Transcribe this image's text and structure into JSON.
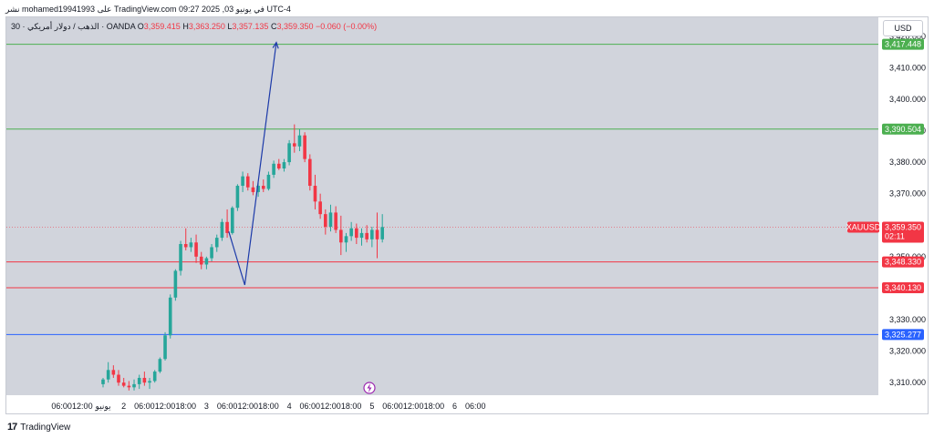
{
  "header": {
    "text": "نشر mohamed19941993 على TradingView.com في يونيو 03, 2025 09:27 UTC-4"
  },
  "legend": {
    "interval": "30",
    "symbol_name": "الذهب / دولار أمريكي",
    "broker": "OANDA",
    "o_label": "O",
    "o_value": "3,359.415",
    "h_label": "H",
    "h_value": "3,363.250",
    "l_label": "L",
    "l_value": "3,357.135",
    "c_label": "C",
    "c_value": "3,359.350",
    "change": "−0.060 (−0.00%)"
  },
  "currency_button": "USD",
  "footer": {
    "logo": "17",
    "brand": "TradingView"
  },
  "colors": {
    "up": "#26a69a",
    "down": "#f23645",
    "resistance": "#4caf50",
    "support": "#f23645",
    "blue_level": "#2962ff",
    "projection": "#1c3aa9"
  },
  "chart_data": {
    "type": "candlestick",
    "symbol": "XAUUSD",
    "ylim": [
      3306,
      3426
    ],
    "y_ticks": [
      {
        "value": 3420,
        "label": "3,420.000"
      },
      {
        "value": 3410,
        "label": "3,410.000"
      },
      {
        "value": 3400,
        "label": "3,400.000"
      },
      {
        "value": 3390,
        "label": "3,390.000"
      },
      {
        "value": 3380,
        "label": "3,380.000"
      },
      {
        "value": 3370,
        "label": "3,370.000"
      },
      {
        "value": 3350,
        "label": "3,350.000"
      },
      {
        "value": 3330,
        "label": "3,330.000"
      },
      {
        "value": 3320,
        "label": "3,320.000"
      },
      {
        "value": 3310,
        "label": "3,310.000"
      }
    ],
    "x_ticks": [
      {
        "i": -8,
        "label": "06:00"
      },
      {
        "i": -4,
        "label": "12:00"
      },
      {
        "i": 0,
        "label": "يونيو"
      },
      {
        "i": 4,
        "label": "2"
      },
      {
        "i": 8,
        "label": "06:00"
      },
      {
        "i": 12,
        "label": "12:00"
      },
      {
        "i": 16,
        "label": "18:00"
      },
      {
        "i": 20,
        "label": "3"
      },
      {
        "i": 24,
        "label": "06:00"
      },
      {
        "i": 28,
        "label": "12:00"
      },
      {
        "i": 32,
        "label": "18:00"
      },
      {
        "i": 36,
        "label": "4"
      },
      {
        "i": 40,
        "label": "06:00"
      },
      {
        "i": 44,
        "label": "12:00"
      },
      {
        "i": 48,
        "label": "18:00"
      },
      {
        "i": 52,
        "label": "5"
      },
      {
        "i": 56,
        "label": "06:00"
      },
      {
        "i": 60,
        "label": "12:00"
      },
      {
        "i": 64,
        "label": "18:00"
      },
      {
        "i": 68,
        "label": "6"
      },
      {
        "i": 72,
        "label": "06:00"
      }
    ],
    "levels": [
      {
        "name": "resistance-2",
        "value": 3417.448,
        "label": "3,417.448",
        "kind": "resistance"
      },
      {
        "name": "resistance-1",
        "value": 3390.504,
        "label": "3,390.504",
        "kind": "resistance"
      },
      {
        "name": "support-1",
        "value": 3348.33,
        "label": "3,348.330",
        "kind": "support"
      },
      {
        "name": "support-2",
        "value": 3340.13,
        "label": "3,340.130",
        "kind": "support"
      },
      {
        "name": "blue-level",
        "value": 3325.277,
        "label": "3,325.277",
        "kind": "blue_level"
      }
    ],
    "last_price": {
      "value": 3359.35,
      "label": "3,359.350",
      "countdown": "02:11"
    },
    "projection": [
      {
        "i": 24.3,
        "v": 3358
      },
      {
        "i": 27.4,
        "v": 3341
      },
      {
        "i": 33.5,
        "v": 3418
      }
    ],
    "candles": [
      [
        3309.5,
        3311.5,
        3308.5,
        3311.0
      ],
      [
        3311.0,
        3316.5,
        3310.0,
        3314.0
      ],
      [
        3314.0,
        3315.5,
        3311.5,
        3312.5
      ],
      [
        3312.5,
        3314.0,
        3309.0,
        3310.0
      ],
      [
        3310.0,
        3311.5,
        3308.5,
        3309.0
      ],
      [
        3309.0,
        3310.5,
        3307.5,
        3308.5
      ],
      [
        3308.5,
        3311.0,
        3307.5,
        3309.5
      ],
      [
        3309.5,
        3312.5,
        3308.0,
        3311.5
      ],
      [
        3311.5,
        3313.5,
        3309.0,
        3310.0
      ],
      [
        3310.0,
        3311.5,
        3308.0,
        3310.5
      ],
      [
        3310.5,
        3314.0,
        3310.0,
        3313.5
      ],
      [
        3313.5,
        3318.0,
        3313.0,
        3317.5
      ],
      [
        3317.5,
        3326.0,
        3317.0,
        3325.0
      ],
      [
        3325.0,
        3338.0,
        3324.0,
        3337.0
      ],
      [
        3337.0,
        3346.0,
        3336.0,
        3345.5
      ],
      [
        3345.5,
        3355.0,
        3344.0,
        3354.0
      ],
      [
        3354.0,
        3359.0,
        3352.0,
        3353.0
      ],
      [
        3353.0,
        3356.0,
        3351.5,
        3354.5
      ],
      [
        3354.5,
        3357.0,
        3348.0,
        3350.0
      ],
      [
        3350.0,
        3351.5,
        3346.0,
        3347.5
      ],
      [
        3347.5,
        3350.0,
        3346.0,
        3349.5
      ],
      [
        3349.5,
        3354.0,
        3348.5,
        3353.0
      ],
      [
        3353.0,
        3357.0,
        3351.5,
        3356.0
      ],
      [
        3356.0,
        3362.0,
        3355.0,
        3361.0
      ],
      [
        3361.0,
        3365.0,
        3356.0,
        3357.5
      ],
      [
        3357.5,
        3366.0,
        3357.0,
        3365.5
      ],
      [
        3365.5,
        3373.0,
        3364.5,
        3372.5
      ],
      [
        3372.5,
        3377.0,
        3370.5,
        3375.5
      ],
      [
        3375.5,
        3376.5,
        3371.0,
        3372.0
      ],
      [
        3372.0,
        3374.0,
        3369.5,
        3370.5
      ],
      [
        3370.5,
        3373.5,
        3369.0,
        3372.5
      ],
      [
        3372.5,
        3374.5,
        3370.5,
        3371.5
      ],
      [
        3371.5,
        3377.0,
        3371.0,
        3376.0
      ],
      [
        3376.0,
        3380.5,
        3375.0,
        3379.5
      ],
      [
        3379.5,
        3381.0,
        3377.5,
        3378.0
      ],
      [
        3378.0,
        3381.0,
        3377.0,
        3380.0
      ],
      [
        3380.0,
        3387.0,
        3379.0,
        3386.0
      ],
      [
        3386.0,
        3392.0,
        3383.0,
        3385.0
      ],
      [
        3385.0,
        3390.5,
        3383.5,
        3388.5
      ],
      [
        3388.5,
        3389.5,
        3380.0,
        3381.0
      ],
      [
        3381.0,
        3382.5,
        3371.0,
        3372.5
      ],
      [
        3372.5,
        3376.0,
        3365.0,
        3367.5
      ],
      [
        3367.5,
        3370.0,
        3362.0,
        3363.5
      ],
      [
        3363.5,
        3365.0,
        3357.0,
        3359.5
      ],
      [
        3359.5,
        3366.5,
        3358.0,
        3364.0
      ],
      [
        3364.0,
        3366.0,
        3357.5,
        3358.5
      ],
      [
        3358.5,
        3363.0,
        3350.5,
        3354.5
      ],
      [
        3354.5,
        3357.5,
        3351.5,
        3356.5
      ],
      [
        3356.5,
        3361.0,
        3355.0,
        3359.0
      ],
      [
        3359.0,
        3360.5,
        3354.0,
        3356.0
      ],
      [
        3356.0,
        3359.0,
        3353.5,
        3357.5
      ],
      [
        3357.5,
        3360.0,
        3354.5,
        3355.5
      ],
      [
        3355.5,
        3359.5,
        3353.0,
        3358.5
      ],
      [
        3358.5,
        3364.0,
        3349.5,
        3355.5
      ],
      [
        3355.5,
        3363.5,
        3354.5,
        3359.4
      ]
    ]
  }
}
